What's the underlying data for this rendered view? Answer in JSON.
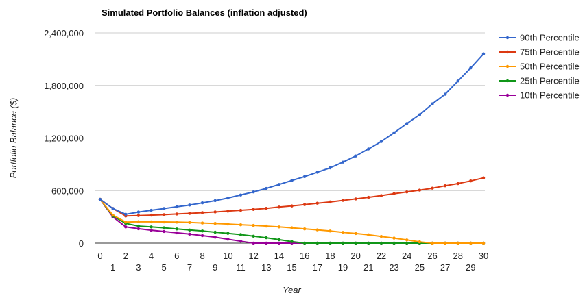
{
  "chart_data": {
    "type": "line",
    "title": "Simulated Portfolio Balances (inflation adjusted)",
    "xlabel": "Year",
    "ylabel": "Portfolio Balance ($)",
    "x": [
      0,
      1,
      2,
      3,
      4,
      5,
      6,
      7,
      8,
      9,
      10,
      11,
      12,
      13,
      14,
      15,
      16,
      17,
      18,
      19,
      20,
      21,
      22,
      23,
      24,
      25,
      26,
      27,
      28,
      29,
      30
    ],
    "xlim": [
      0,
      30
    ],
    "ylim": [
      0,
      2400000
    ],
    "y_ticks": [
      0,
      600000,
      1200000,
      1800000,
      2400000
    ],
    "y_tick_labels": [
      "0",
      "600,000",
      "1,200,000",
      "1,800,000",
      "2,400,000"
    ],
    "grid": "horizontal",
    "legend_position": "right",
    "series": [
      {
        "name": "90th Percentile",
        "color": "#3366cc",
        "values": [
          500000,
          395000,
          330000,
          355000,
          375000,
          395000,
          415000,
          435000,
          460000,
          485000,
          515000,
          550000,
          585000,
          625000,
          670000,
          715000,
          760000,
          810000,
          860000,
          925000,
          995000,
          1075000,
          1160000,
          1260000,
          1365000,
          1465000,
          1590000,
          1700000,
          1850000,
          2000000,
          2160000
        ]
      },
      {
        "name": "75th Percentile",
        "color": "#dc3912",
        "values": [
          500000,
          395000,
          310000,
          315000,
          320000,
          325000,
          333000,
          340000,
          348000,
          356000,
          365000,
          375000,
          385000,
          397000,
          412000,
          425000,
          440000,
          456000,
          470000,
          488000,
          505000,
          523000,
          543000,
          565000,
          585000,
          605000,
          628000,
          655000,
          680000,
          710000,
          745000
        ]
      },
      {
        "name": "50th Percentile",
        "color": "#ff9900",
        "values": [
          500000,
          320000,
          240000,
          245000,
          243000,
          242000,
          240000,
          236000,
          230000,
          225000,
          218000,
          210000,
          203000,
          195000,
          185000,
          175000,
          163000,
          152000,
          138000,
          123000,
          110000,
          95000,
          77000,
          58000,
          37000,
          15000,
          0,
          0,
          0,
          0,
          0
        ]
      },
      {
        "name": "25th Percentile",
        "color": "#109618",
        "values": [
          500000,
          310000,
          225000,
          195000,
          185000,
          175000,
          162000,
          150000,
          138000,
          125000,
          112000,
          98000,
          80000,
          62000,
          40000,
          18000,
          0,
          0,
          0,
          0,
          0,
          0,
          0,
          0,
          0,
          0,
          0,
          0,
          0,
          0,
          0
        ]
      },
      {
        "name": "10th Percentile",
        "color": "#990099",
        "values": [
          500000,
          300000,
          185000,
          165000,
          148000,
          133000,
          118000,
          103000,
          86000,
          68000,
          45000,
          22000,
          0,
          0,
          0,
          0,
          0,
          0,
          0,
          0,
          0,
          0,
          0,
          0,
          0,
          0,
          0,
          0,
          0,
          0,
          0
        ]
      }
    ]
  }
}
